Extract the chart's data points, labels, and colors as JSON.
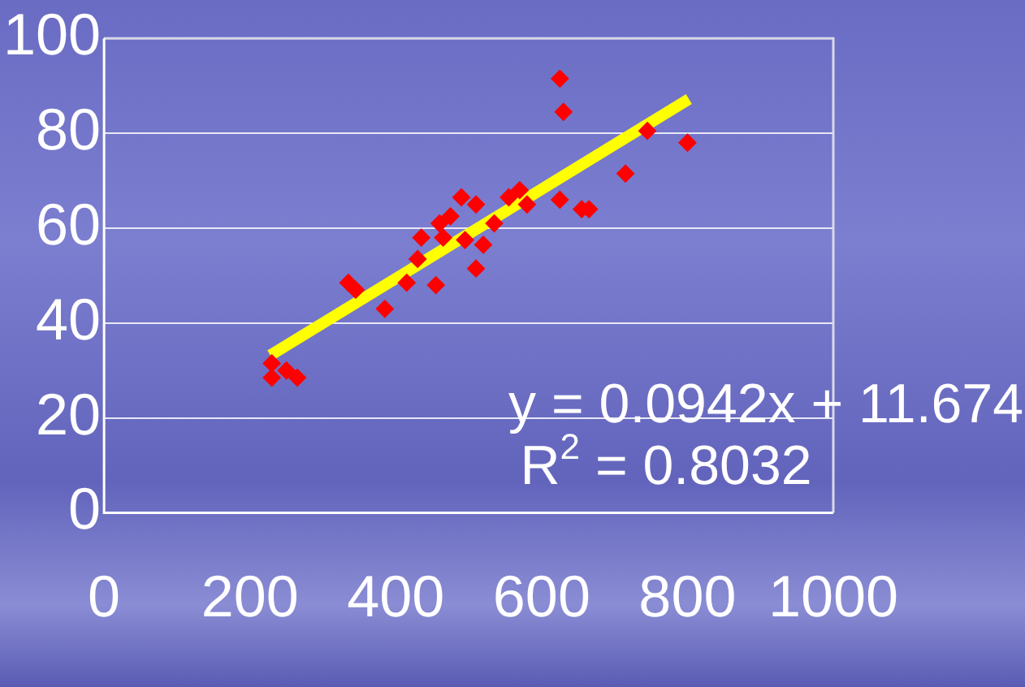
{
  "chart_data": {
    "type": "scatter",
    "xlim": [
      0,
      1000
    ],
    "ylim": [
      0,
      100
    ],
    "xticks": [
      0,
      200,
      400,
      600,
      800,
      1000
    ],
    "yticks": [
      0,
      20,
      40,
      60,
      80,
      100
    ],
    "grid": "y",
    "legend": false,
    "marker": "diamond",
    "annotations": [
      "y = 0.0942x + 11.674",
      "R$^{2}$ = 0.8032"
    ],
    "series": [
      {
        "color": "#ff0000",
        "x": [
          230,
          230,
          250,
          265,
          335,
          345,
          385,
          415,
          430,
          435,
          455,
          460,
          465,
          475,
          490,
          495,
          510,
          510,
          520,
          535,
          555,
          570,
          580,
          625,
          625,
          630,
          655,
          665,
          715,
          745,
          800
        ],
        "values": [
          31.5,
          28.5,
          30,
          28.5,
          48.5,
          47,
          43,
          48.5,
          53.5,
          58,
          48,
          61,
          58,
          62.5,
          66.5,
          57.5,
          65,
          51.5,
          56.5,
          61,
          66.5,
          68,
          65,
          66,
          91.5,
          84.5,
          64,
          64,
          71.5,
          80.5,
          78
        ]
      },
      {
        "type": "line",
        "color": "#ffff00",
        "marker": "none",
        "x": [
          228,
          802
        ],
        "values": [
          33.2,
          87.2
        ]
      }
    ]
  }
}
